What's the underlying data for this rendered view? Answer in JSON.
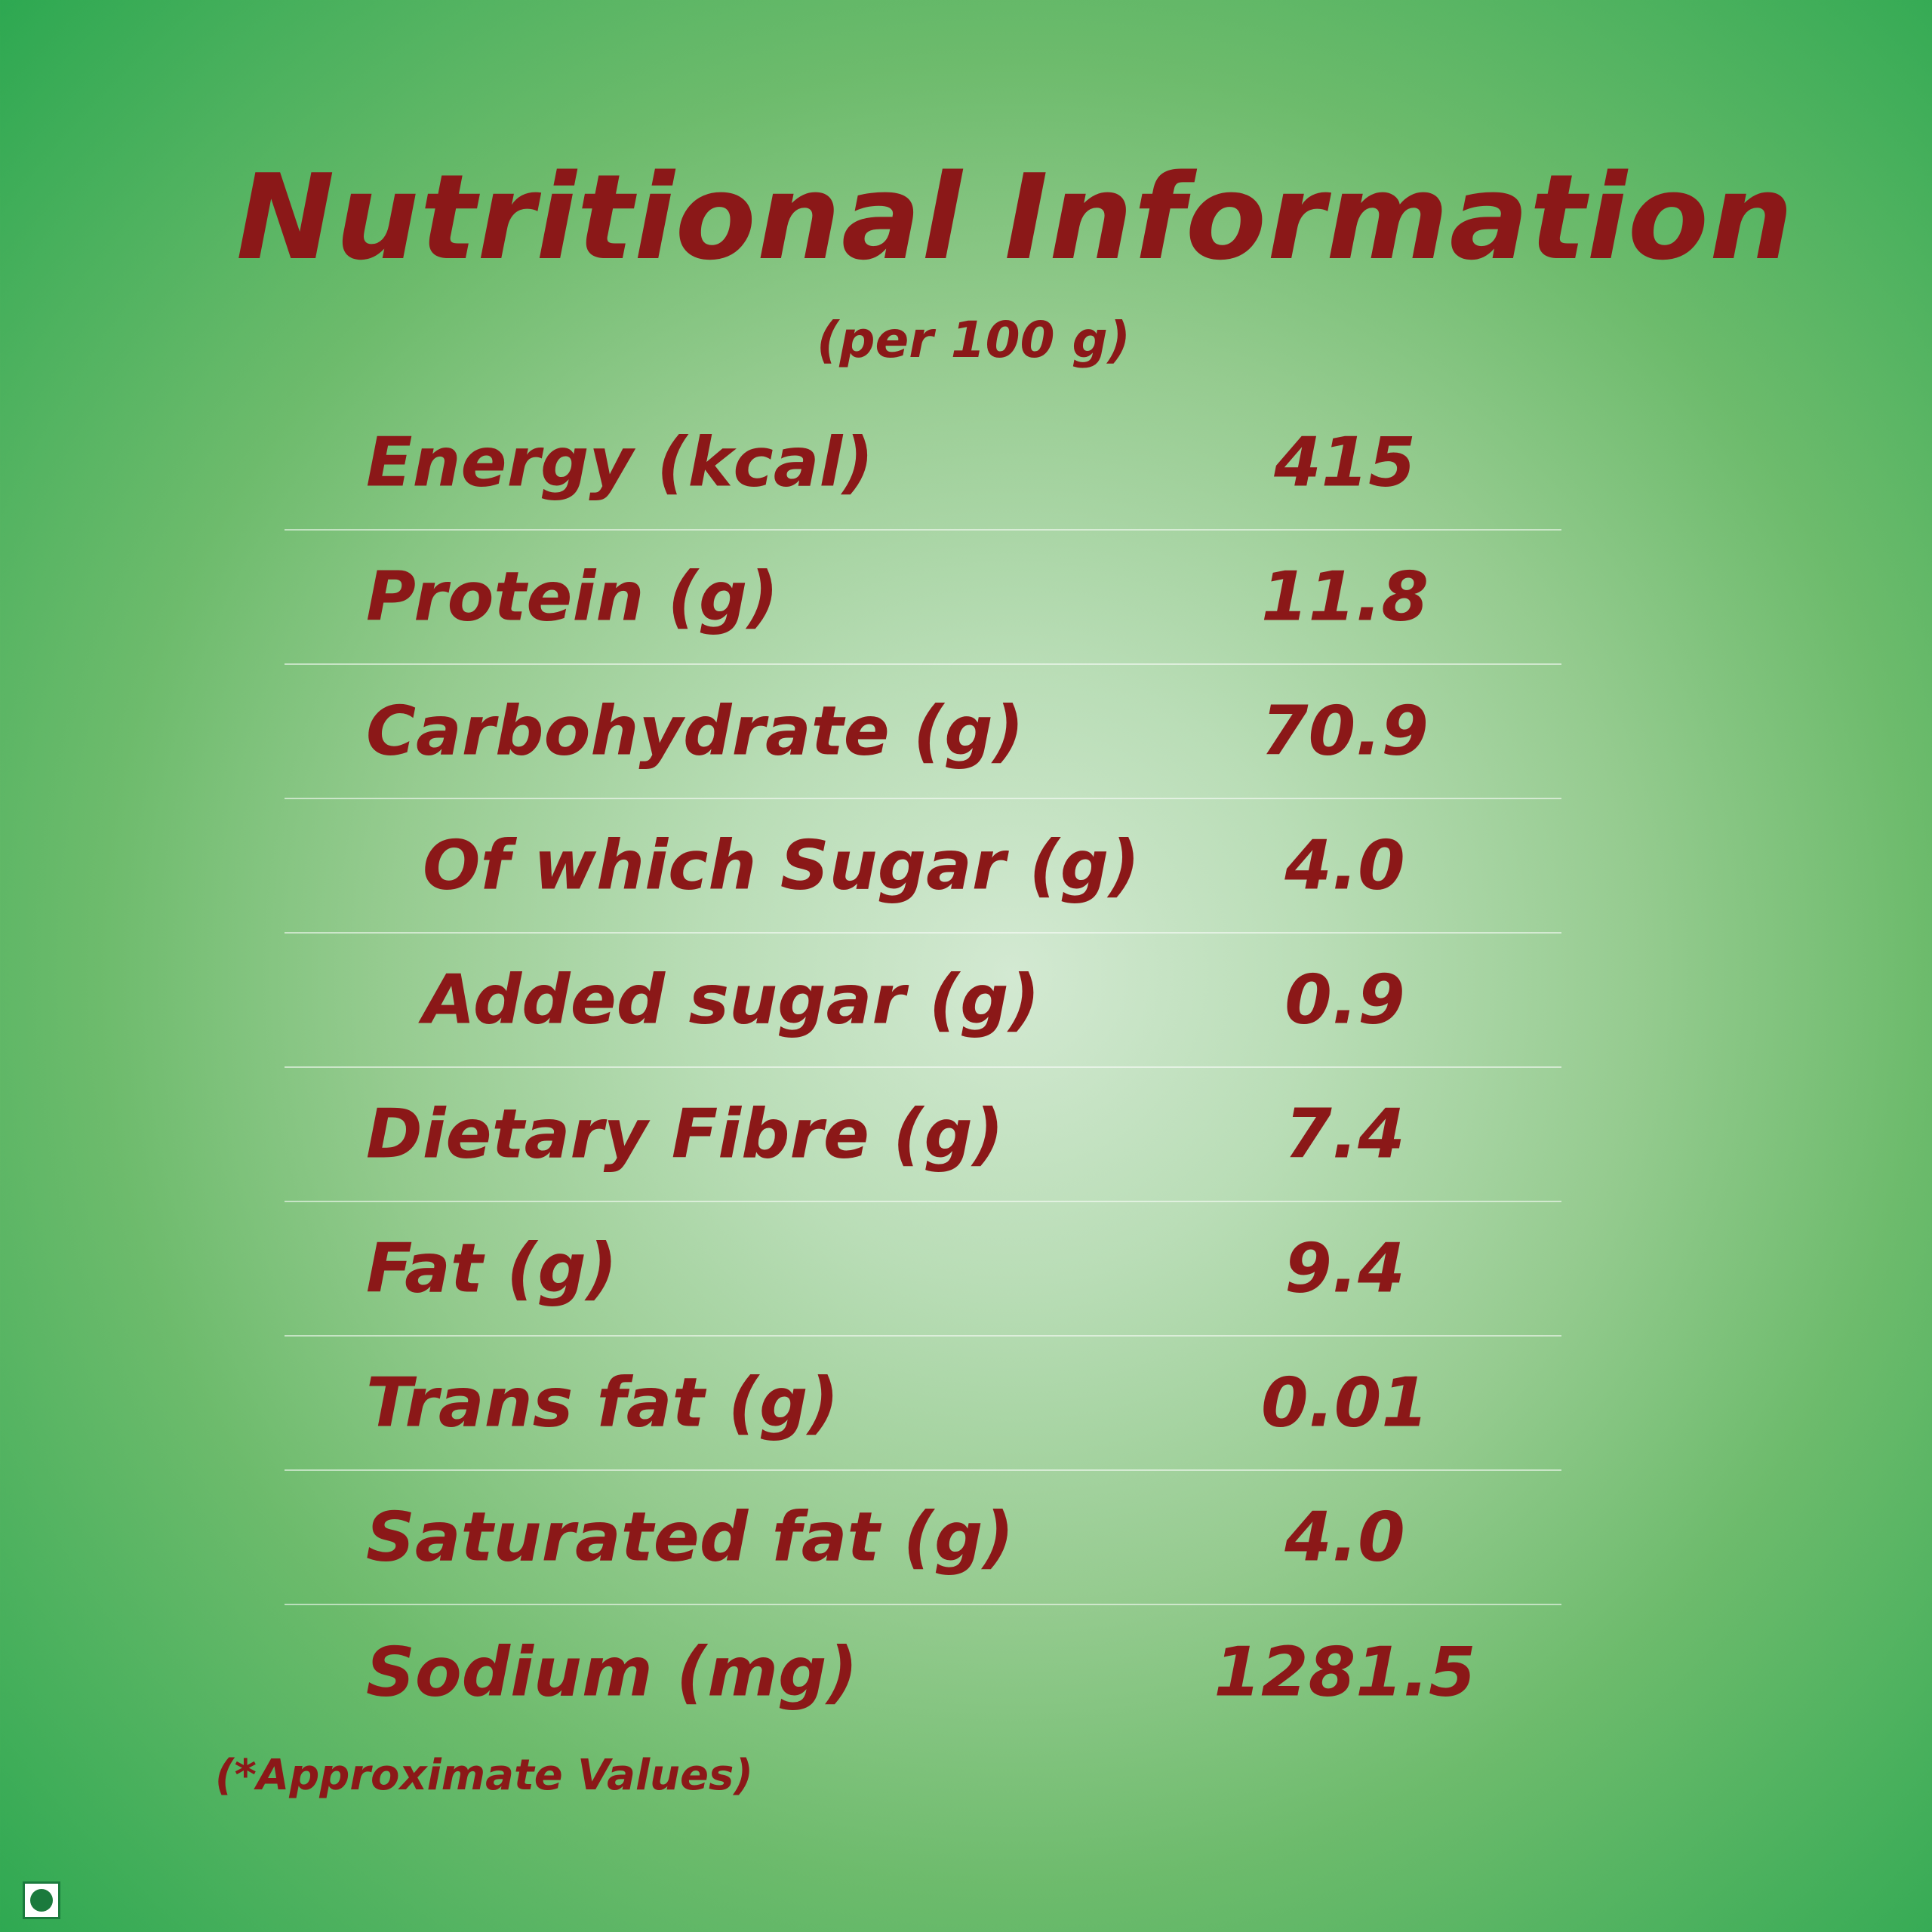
{
  "title": "Nutritional Information",
  "subtitle": "(per 100 g)",
  "rows": [
    {
      "label": "Energy (kcal)",
      "value": "415"
    },
    {
      "label": "Protein (g)",
      "value": "11.8"
    },
    {
      "label": "Carbohydrate (g)",
      "value": "70.9"
    },
    {
      "label": "Of which Sugar (g)",
      "value": "4.0"
    },
    {
      "label": "Added sugar (g)",
      "value": "0.9"
    },
    {
      "label": "Dietary Fibre (g)",
      "value": "7.4"
    },
    {
      "label": "Fat (g)",
      "value": "9.4"
    },
    {
      "label": "Trans fat (g)",
      "value": "0.01"
    },
    {
      "label": "Saturated fat (g)",
      "value": "4.0"
    },
    {
      "label": "Sodium (mg)",
      "value": "1281.5"
    }
  ],
  "note": "(*Approximate Values)",
  "colors": {
    "text": "#8b1818",
    "background_center": "#d3e9d2",
    "background_edge": "#2da851",
    "veg_mark": "#1b7a3d"
  },
  "icons": {
    "veg_mark": "veg-symbol-icon"
  }
}
